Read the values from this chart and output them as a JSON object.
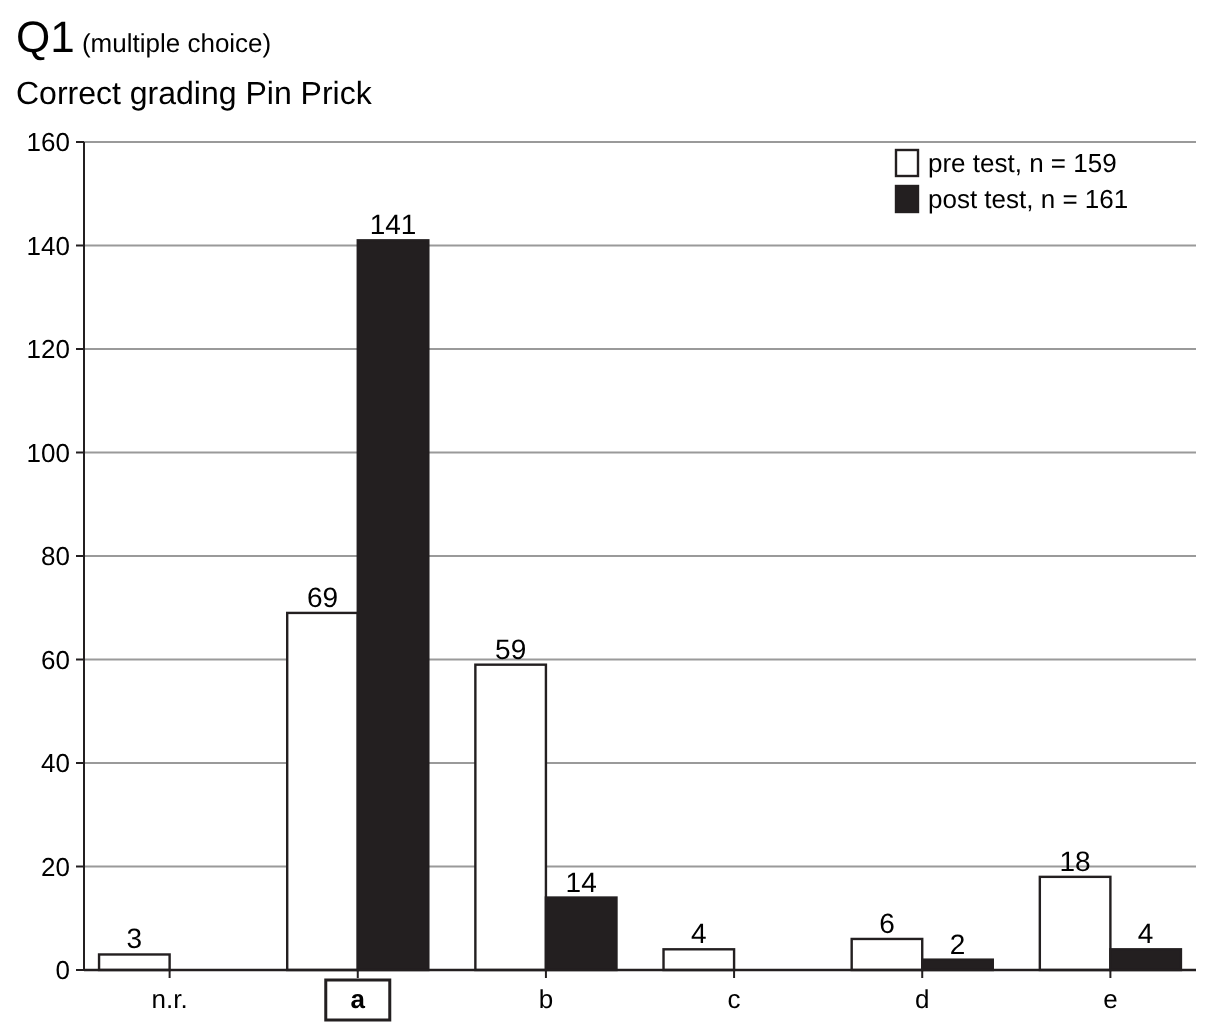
{
  "chart_data": {
    "type": "bar",
    "title": "Q1 (multiple choice)",
    "subtitle": "Correct grading Pin Prick",
    "categories": [
      "n.r.",
      "a",
      "b",
      "c",
      "d",
      "e"
    ],
    "series": [
      {
        "name": "pre test, n = 159",
        "color": "#ffffff",
        "values": [
          3,
          69,
          59,
          4,
          6,
          18
        ]
      },
      {
        "name": "post test, n = 161",
        "color": "#231f20",
        "values": [
          null,
          141,
          14,
          null,
          2,
          4
        ]
      }
    ],
    "ylim": [
      0,
      160
    ],
    "yticks": [
      0,
      20,
      40,
      60,
      80,
      100,
      120,
      140,
      160
    ],
    "grid": "y",
    "legend": "top right",
    "data_labels": true
  }
}
